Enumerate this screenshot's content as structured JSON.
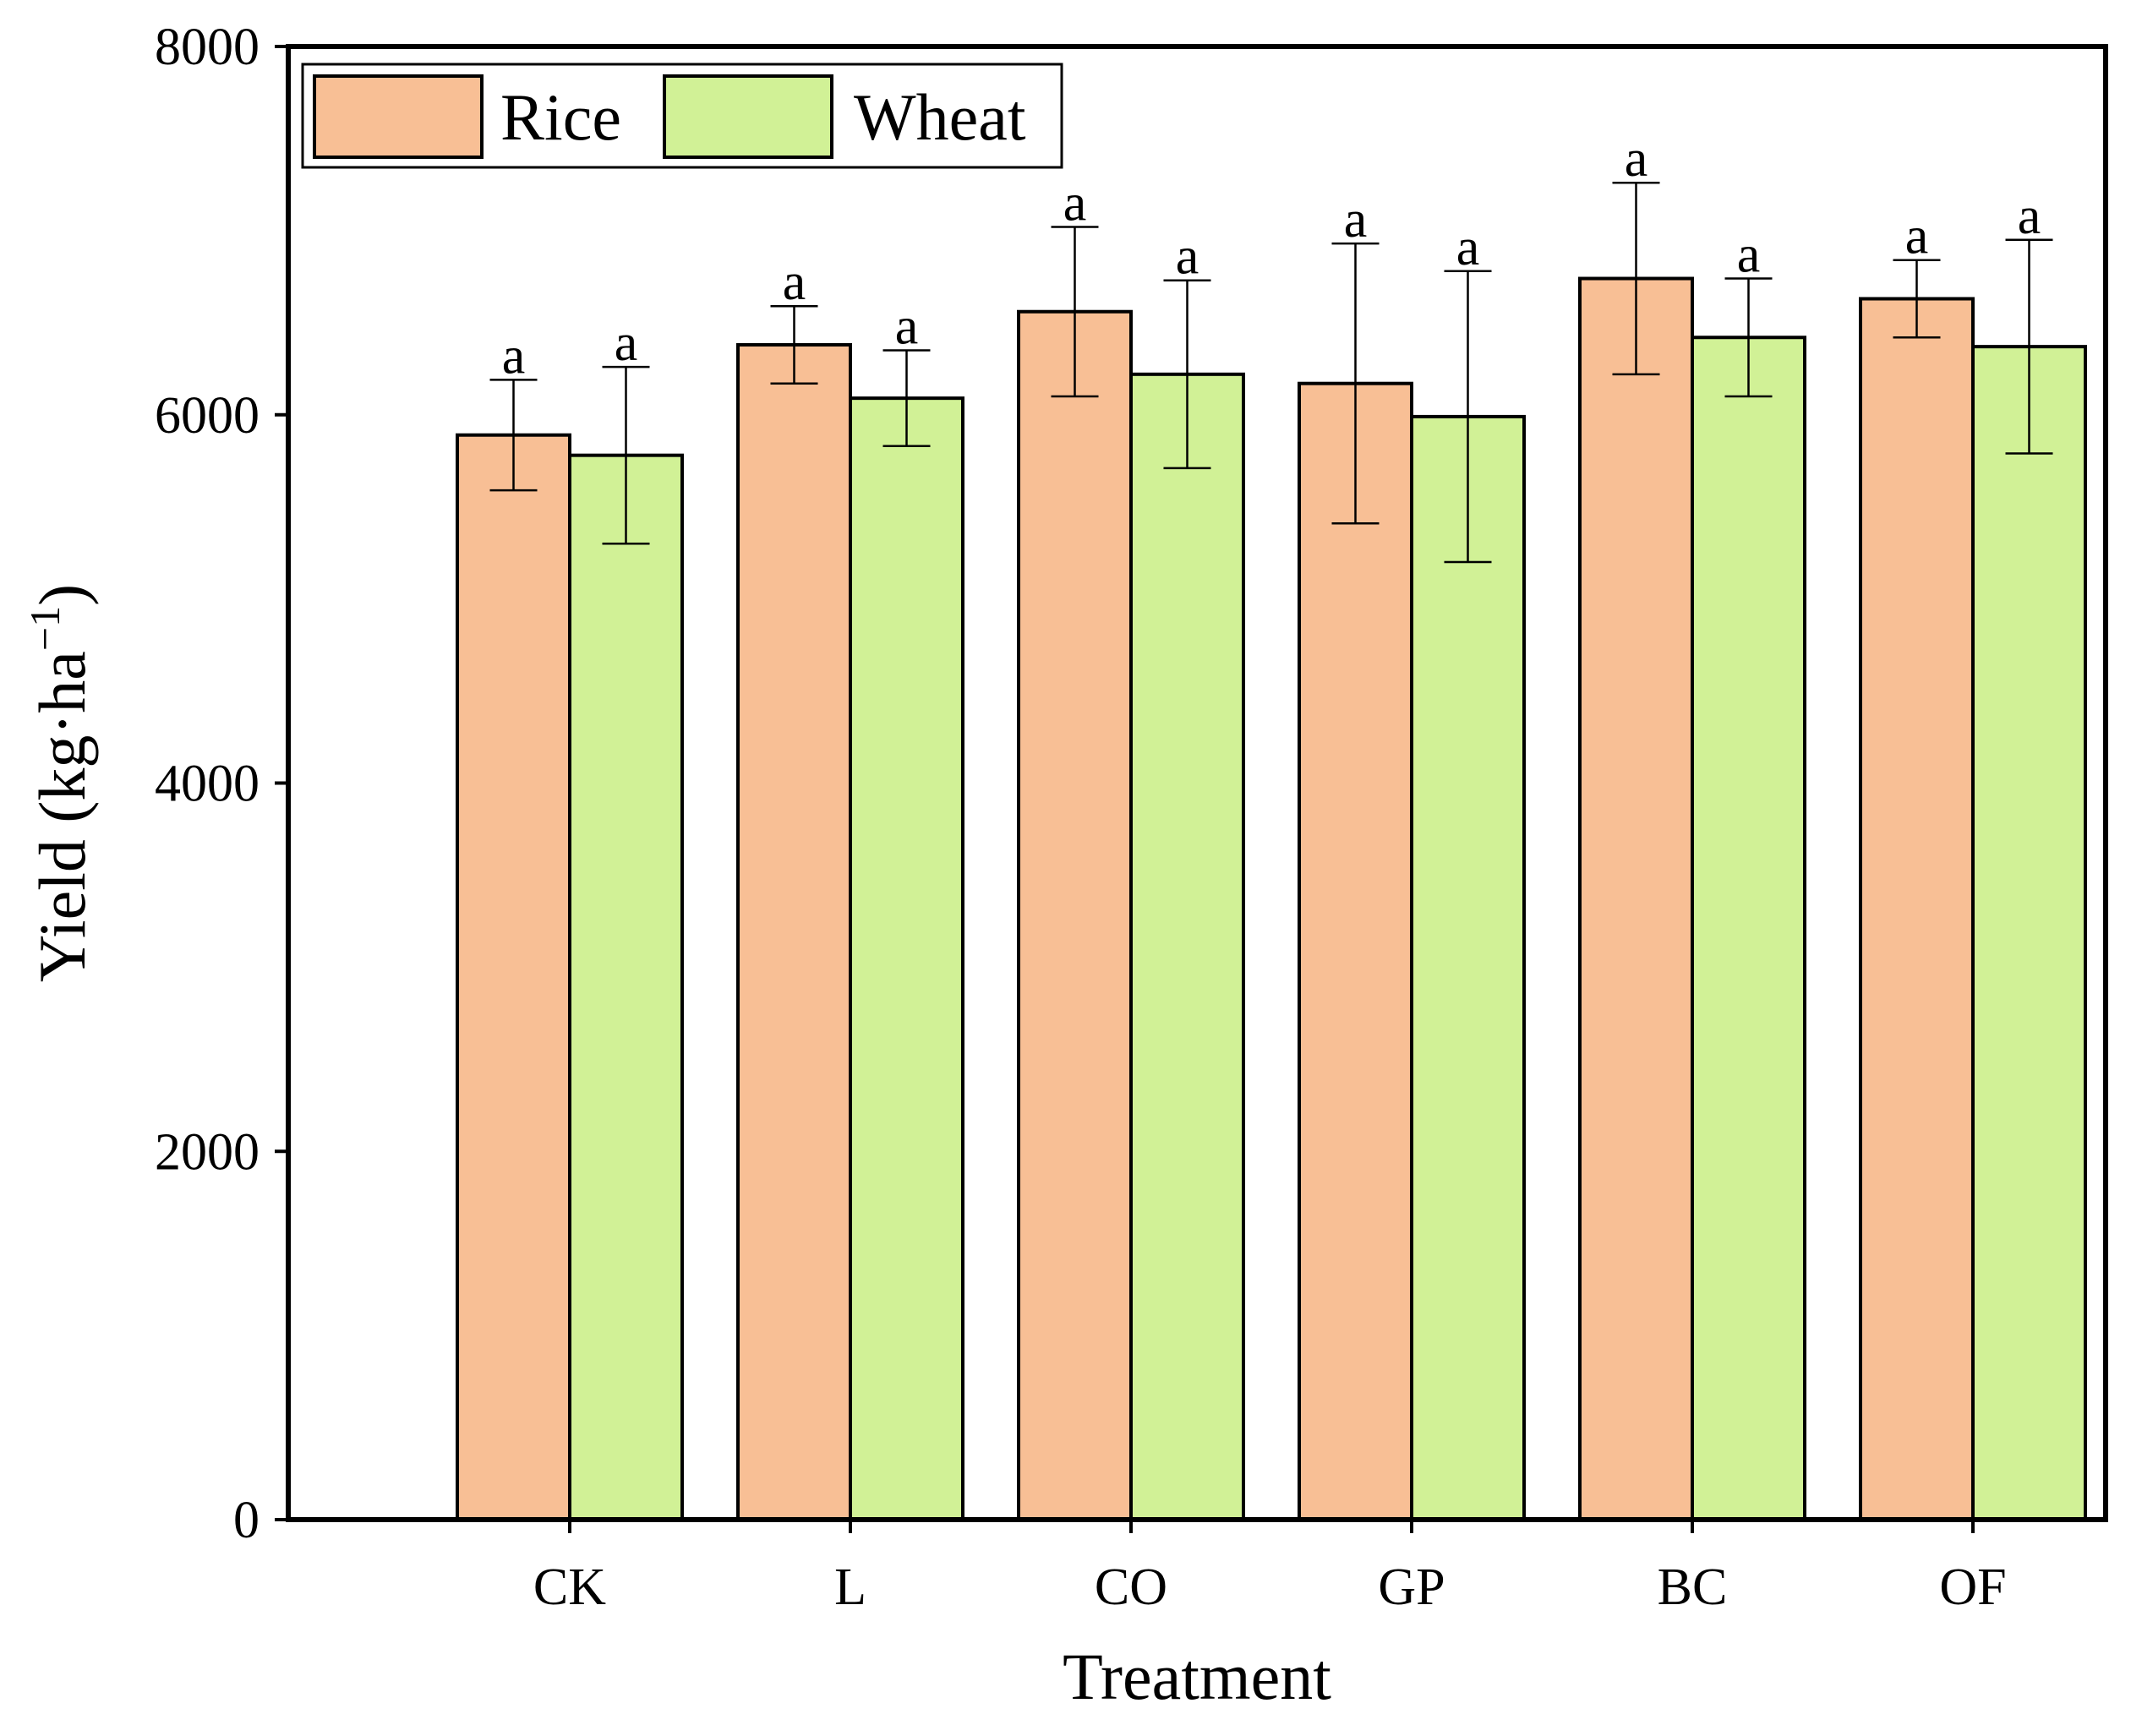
{
  "chart_data": {
    "type": "bar",
    "title": "",
    "xlabel": "Treatment",
    "ylabel": "Yield (kg·ha",
    "ylabel_superscript": "−1",
    "ylabel_close": ")",
    "ylim": [
      0,
      8000
    ],
    "yticks": [
      "0",
      "2000",
      "4000",
      "6000",
      "8000"
    ],
    "grid": false,
    "legend_position": "top-left",
    "categories": [
      "CK",
      "L",
      "CO",
      "GP",
      "BC",
      "OF"
    ],
    "series": [
      {
        "name": "Rice",
        "color": "#F8BF95",
        "values": [
          5890,
          6380,
          6560,
          6170,
          6740,
          6630
        ],
        "errors": [
          300,
          210,
          460,
          760,
          520,
          210
        ],
        "labels": [
          "a",
          "a",
          "a",
          "a",
          "a",
          "a"
        ]
      },
      {
        "name": "Wheat",
        "color": "#D1F196",
        "values": [
          5780,
          6090,
          6220,
          5990,
          6420,
          6370
        ],
        "errors": [
          480,
          260,
          510,
          790,
          320,
          580
        ],
        "labels": [
          "a",
          "a",
          "a",
          "a",
          "a",
          "a"
        ]
      }
    ]
  },
  "colors": {
    "axis": "#000000",
    "rice": "#F8BF95",
    "wheat": "#D1F196"
  }
}
